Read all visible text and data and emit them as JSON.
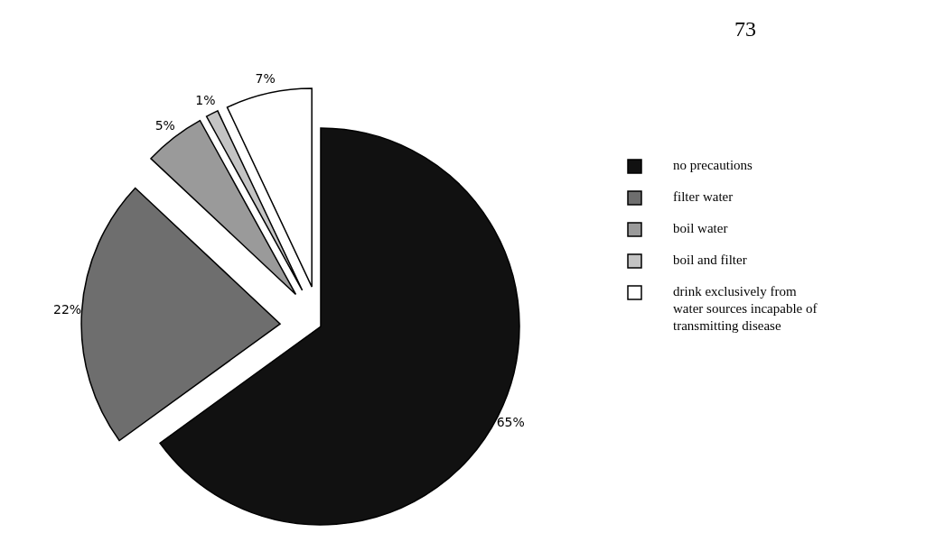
{
  "chart_data": {
    "type": "pie",
    "categories": [
      "no precautions",
      "filter  water",
      "boil water",
      "boil and filter",
      "drink exclusively from water sources incapable of transmitting disease"
    ],
    "values": [
      65,
      22,
      5,
      1,
      7
    ],
    "value_labels": [
      "65%",
      "22%",
      "5%",
      "1%",
      "7%"
    ],
    "colors": [
      "#111111",
      "#6e6e6e",
      "#9a9a9a",
      "#c4c4c4",
      "#ffffff"
    ],
    "legend": "right",
    "annotations": [
      "73"
    ]
  }
}
